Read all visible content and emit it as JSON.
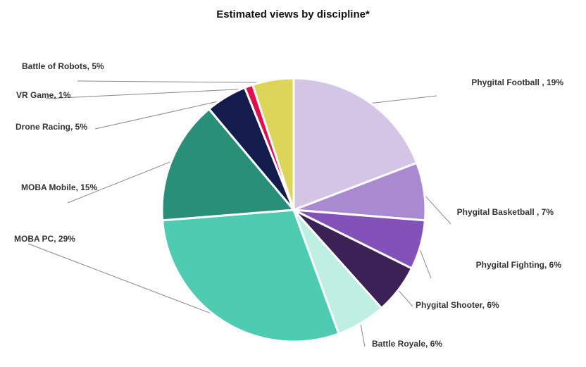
{
  "chart_data": {
    "type": "pie",
    "title": "Estimated views by discipline*",
    "slices": [
      {
        "label": "Phygital Football , 19%",
        "name": "Phygital Football",
        "value": 19,
        "color": "#d4c4e6"
      },
      {
        "label": "Phygital Basketball , 7%",
        "name": "Phygital Basketball",
        "value": 7,
        "color": "#a98ad1"
      },
      {
        "label": "Phygital Fighting, 6%",
        "name": "Phygital Fighting",
        "value": 6,
        "color": "#8352b8"
      },
      {
        "label": "Phygital Shooter, 6%",
        "name": "Phygital Shooter",
        "value": 6,
        "color": "#3c2157"
      },
      {
        "label": "Battle Royale, 6%",
        "name": "Battle Royale",
        "value": 6,
        "color": "#bfeee3"
      },
      {
        "label": "MOBA PC, 29%",
        "name": "MOBA PC",
        "value": 29,
        "color": "#4ecbb0"
      },
      {
        "label": "MOBA Mobile, 15%",
        "name": "MOBA Mobile",
        "value": 15,
        "color": "#2a8f79"
      },
      {
        "label": "Drone Racing, 5%",
        "name": "Drone Racing",
        "value": 5,
        "color": "#141b4d"
      },
      {
        "label": "VR Game, 1%",
        "name": "VR Game",
        "value": 1,
        "color": "#e0104f"
      },
      {
        "label": "Battle of Robots, 5%",
        "name": "Battle of Robots",
        "value": 5,
        "color": "#ddd45a"
      }
    ]
  }
}
